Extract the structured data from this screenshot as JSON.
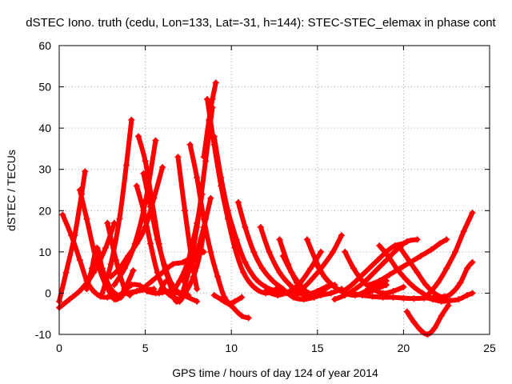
{
  "chart_data": {
    "type": "line",
    "title": "dSTEC Iono. truth (cedu, Lon=133, Lat=-31, h=144): STEC-STEC_elemax in phase cont",
    "xlabel": "GPS time / hours of day 124 of year 2014",
    "ylabel": "dSTEC  / TECUs",
    "xlim": [
      0,
      25
    ],
    "ylim": [
      -10,
      60
    ],
    "xticks": [
      "0",
      "5",
      "10",
      "15",
      "20",
      "25"
    ],
    "yticks": [
      "-10",
      "0",
      "10",
      "20",
      "30",
      "40",
      "50",
      "60"
    ],
    "grid": true,
    "marker": "+",
    "color": "#ff0000",
    "series": [
      {
        "x": [
          0.0,
          0.6,
          1.3,
          2.0,
          2.7,
          3.2
        ],
        "y": [
          -3.5,
          -1.5,
          1.0,
          5.0,
          11.0,
          17.0
        ]
      },
      {
        "x": [
          0.2,
          0.7,
          1.2,
          1.6,
          2.0,
          2.4,
          2.8,
          3.5,
          4.5,
          5.5
        ],
        "y": [
          19.0,
          14.0,
          8.0,
          3.0,
          0.5,
          -0.8,
          -1.0,
          -0.5,
          0.5,
          1.0
        ]
      },
      {
        "x": [
          0.0,
          0.4,
          0.9,
          1.3,
          1.5
        ],
        "y": [
          -2.0,
          5.0,
          14.0,
          24.0,
          29.5
        ]
      },
      {
        "x": [
          1.2,
          1.6,
          2.1,
          2.7,
          3.3,
          3.8,
          4.3
        ],
        "y": [
          25.0,
          18.0,
          9.0,
          2.0,
          -1.5,
          1.0,
          5.5
        ]
      },
      {
        "x": [
          1.6,
          1.9,
          2.2,
          2.5,
          3.0,
          3.6
        ],
        "y": [
          1.0,
          6.0,
          11.0,
          6.0,
          1.0,
          -1.0
        ]
      },
      {
        "x": [
          2.8,
          3.3,
          3.8,
          4.1
        ],
        "y": [
          17.0,
          8.0,
          1.0,
          -0.5
        ]
      },
      {
        "x": [
          2.5,
          3.0,
          3.5,
          3.9,
          4.2
        ],
        "y": [
          0.0,
          7.0,
          18.0,
          31.0,
          42.0
        ]
      },
      {
        "x": [
          3.2,
          3.7,
          4.2,
          4.7,
          5.1,
          5.6,
          6.0,
          6.5,
          7.2,
          8.0
        ],
        "y": [
          -1.5,
          0.0,
          2.0,
          1.8,
          0.5,
          0.0,
          0.2,
          0.5,
          -0.5,
          -2.0
        ]
      },
      {
        "x": [
          4.6,
          5.0,
          5.4,
          5.8,
          6.2,
          6.7
        ],
        "y": [
          38.0,
          32.0,
          22.0,
          12.0,
          5.0,
          0.5
        ]
      },
      {
        "x": [
          4.5,
          4.9,
          5.3,
          5.7,
          6.1,
          6.6,
          7.1
        ],
        "y": [
          26.0,
          20.0,
          12.0,
          5.0,
          1.0,
          -1.0,
          -1.5
        ]
      },
      {
        "x": [
          4.9,
          5.3,
          5.7,
          6.1,
          6.5,
          7.0,
          7.5
        ],
        "y": [
          29.0,
          21.0,
          13.0,
          7.0,
          2.5,
          0.0,
          -0.5
        ]
      },
      {
        "x": [
          3.2,
          3.8,
          4.4,
          5.0,
          5.6
        ],
        "y": [
          2.0,
          6.0,
          12.0,
          22.0,
          37.0
        ]
      },
      {
        "x": [
          3.0,
          3.5,
          4.0,
          4.5,
          5.0,
          5.5,
          6.0
        ],
        "y": [
          4.0,
          6.0,
          9.0,
          12.0,
          16.0,
          23.0,
          30.5
        ]
      },
      {
        "x": [
          4.2,
          4.8,
          5.4,
          6.0,
          6.6,
          7.2,
          7.8,
          8.4
        ],
        "y": [
          0.0,
          1.0,
          3.0,
          5.0,
          7.0,
          7.5,
          9.0,
          10.0
        ]
      },
      {
        "x": [
          5.8,
          6.3,
          6.8,
          7.3,
          7.8,
          8.2,
          8.5
        ],
        "y": [
          0.0,
          3.0,
          -2.0,
          0.0,
          4.0,
          10.0,
          18.0
        ]
      },
      {
        "x": [
          6.9,
          7.3,
          7.7,
          8.0
        ],
        "y": [
          33.0,
          20.0,
          8.0,
          1.0
        ]
      },
      {
        "x": [
          7.6,
          8.0,
          8.4,
          8.8,
          9.2,
          9.6,
          10.1,
          10.6,
          11.0
        ],
        "y": [
          36.0,
          28.0,
          18.0,
          10.0,
          4.0,
          -1.0,
          -3.5,
          -5.5,
          -6.0
        ]
      },
      {
        "x": [
          6.5,
          7.0,
          7.5,
          8.0,
          8.3
        ],
        "y": [
          0.0,
          3.0,
          8.0,
          17.0,
          24.0
        ]
      },
      {
        "x": [
          7.2,
          7.6,
          8.0,
          8.4,
          8.8
        ],
        "y": [
          3.0,
          6.0,
          10.0,
          16.0,
          23.0
        ]
      },
      {
        "x": [
          7.0,
          7.5,
          8.0,
          8.5,
          8.9
        ],
        "y": [
          -2.0,
          5.0,
          16.0,
          32.0,
          45.0
        ]
      },
      {
        "x": [
          8.4,
          8.7,
          8.9,
          9.1
        ],
        "y": [
          33.0,
          42.0,
          47.0,
          51.0
        ]
      },
      {
        "x": [
          8.6,
          9.0,
          9.4,
          9.8,
          10.2,
          10.7,
          11.3,
          12.0,
          12.6
        ],
        "y": [
          47.0,
          36.0,
          26.0,
          18.0,
          11.0,
          5.0,
          1.5,
          0.0,
          1.0
        ]
      },
      {
        "x": [
          9.0,
          9.4,
          9.8,
          10.3,
          10.8,
          11.4,
          12.0,
          12.6,
          13.2,
          13.8
        ],
        "y": [
          38.0,
          28.0,
          20.0,
          13.0,
          7.5,
          3.5,
          1.5,
          0.5,
          0.0,
          -0.5
        ]
      },
      {
        "x": [
          10.4,
          10.8,
          11.3,
          11.8,
          12.4,
          13.0,
          13.6,
          14.2,
          14.8
        ],
        "y": [
          22.0,
          16.0,
          10.0,
          6.0,
          3.0,
          1.0,
          -1.0,
          -1.5,
          -1.0
        ]
      },
      {
        "x": [
          9.0,
          9.4,
          9.8,
          10.2,
          10.6
        ],
        "y": [
          -0.5,
          -1.5,
          -2.5,
          -2.0,
          -1.0
        ]
      },
      {
        "x": [
          11.7,
          12.2,
          12.8,
          13.4,
          14.0,
          14.6,
          15.2,
          15.8,
          16.4
        ],
        "y": [
          16.0,
          10.0,
          5.0,
          2.0,
          0.0,
          -1.0,
          -0.5,
          0.0,
          1.0
        ]
      },
      {
        "x": [
          12.8,
          13.3,
          13.8,
          14.3,
          14.8,
          15.3,
          15.8
        ],
        "y": [
          13.0,
          7.0,
          2.5,
          0.0,
          -1.0,
          0.5,
          2.0
        ]
      },
      {
        "x": [
          13.0,
          13.5,
          14.0,
          14.5,
          15.0,
          15.5,
          16.0
        ],
        "y": [
          9.0,
          5.0,
          2.0,
          0.0,
          0.5,
          1.5,
          2.0
        ]
      },
      {
        "x": [
          12.0,
          12.7,
          13.4,
          14.0,
          14.6,
          15.2
        ],
        "y": [
          0.5,
          -0.5,
          0.5,
          2.5,
          6.0,
          10.0
        ]
      },
      {
        "x": [
          14.4,
          14.9,
          15.4,
          16.0,
          16.6,
          17.2,
          17.8,
          18.4,
          19.0
        ],
        "y": [
          13.0,
          8.0,
          4.0,
          1.5,
          0.0,
          -0.5,
          0.5,
          2.0,
          3.0
        ]
      },
      {
        "x": [
          13.5,
          14.1,
          14.7,
          15.3,
          15.9,
          16.4
        ],
        "y": [
          0.0,
          1.0,
          3.5,
          6.5,
          10.0,
          14.0
        ]
      },
      {
        "x": [
          15.0,
          15.5,
          16.0,
          16.6,
          17.2,
          17.8,
          18.4,
          19.0
        ],
        "y": [
          6.5,
          3.5,
          1.5,
          0.0,
          -0.5,
          0.0,
          1.0,
          2.0
        ]
      },
      {
        "x": [
          16.6,
          17.1,
          17.6,
          18.2,
          18.8,
          19.4,
          20.0
        ],
        "y": [
          10.0,
          6.0,
          3.0,
          1.0,
          0.0,
          0.5,
          1.5
        ]
      },
      {
        "x": [
          16.0,
          16.6,
          17.2,
          17.8,
          18.4,
          19.0,
          19.6,
          20.2,
          20.8
        ],
        "y": [
          -1.5,
          -0.5,
          1.0,
          3.0,
          5.5,
          8.0,
          10.5,
          12.5,
          13.0
        ]
      },
      {
        "x": [
          16.5,
          17.0,
          17.5,
          18.0,
          18.5,
          19.0,
          19.5,
          20.0
        ],
        "y": [
          0.5,
          2.0,
          4.0,
          6.0,
          8.0,
          10.0,
          11.5,
          12.0
        ]
      },
      {
        "x": [
          17.0,
          17.6,
          18.2,
          18.8,
          19.4,
          20.0,
          20.6,
          21.2,
          21.8,
          22.4
        ],
        "y": [
          0.0,
          -0.5,
          -0.8,
          -1.0,
          -1.0,
          -1.2,
          -1.3,
          -1.2,
          -1.0,
          -0.8
        ]
      },
      {
        "x": [
          18.0,
          18.6,
          19.2,
          19.8,
          20.4,
          21.0,
          21.6,
          22.1,
          22.5
        ],
        "y": [
          2.0,
          3.0,
          4.5,
          6.0,
          7.5,
          9.0,
          10.5,
          12.0,
          13.0
        ]
      },
      {
        "x": [
          18.6,
          19.1,
          19.6,
          20.1,
          20.6,
          21.1,
          21.5
        ],
        "y": [
          11.5,
          9.0,
          6.0,
          3.5,
          1.5,
          0.0,
          -1.0
        ]
      },
      {
        "x": [
          19.8,
          20.3,
          20.8,
          21.3,
          21.8,
          22.3,
          22.8,
          23.3,
          23.7,
          24.0
        ],
        "y": [
          11.0,
          8.0,
          5.0,
          2.0,
          0.0,
          -1.0,
          0.0,
          2.5,
          6.0,
          7.5
        ]
      },
      {
        "x": [
          20.2,
          20.6,
          21.0,
          21.4,
          21.8,
          22.2,
          22.6
        ],
        "y": [
          -4.5,
          -7.0,
          -9.0,
          -10.0,
          -8.5,
          -5.5,
          -3.0
        ]
      },
      {
        "x": [
          21.2,
          21.7,
          22.2,
          22.7,
          23.2,
          23.7,
          24.0
        ],
        "y": [
          -1.0,
          -1.5,
          -2.0,
          -1.8,
          -1.5,
          -0.5,
          0.0
        ]
      },
      {
        "x": [
          21.5,
          22.0,
          22.5,
          23.0,
          23.5,
          24.0
        ],
        "y": [
          0.0,
          2.5,
          6.0,
          10.0,
          15.0,
          19.5
        ]
      }
    ]
  }
}
